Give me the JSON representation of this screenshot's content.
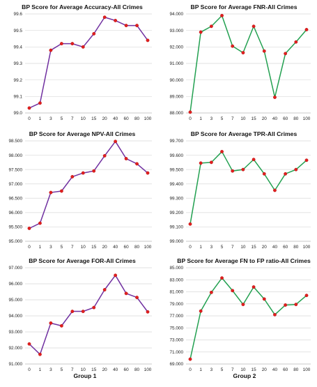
{
  "figure": {
    "group_labels": [
      "Group 1",
      "Group 2"
    ]
  },
  "chart_data": [
    {
      "type": "line",
      "title": "BP Score for Average Accuracy-All Crimes",
      "categories": [
        "0",
        "1",
        "3",
        "5",
        "7",
        "10",
        "15",
        "20",
        "40",
        "60",
        "80",
        "100"
      ],
      "values": [
        99.03,
        99.06,
        99.38,
        99.42,
        99.42,
        99.4,
        99.48,
        99.58,
        99.56,
        99.53,
        99.53,
        99.44
      ],
      "ylim": [
        99.0,
        99.6
      ],
      "yticks": [
        "99.0",
        "99.1",
        "99.2",
        "99.3",
        "99.4",
        "99.5",
        "99.6"
      ],
      "ytick_values": [
        99.0,
        99.1,
        99.2,
        99.3,
        99.4,
        99.5,
        99.6
      ],
      "line_color": "#7030a0",
      "marker_color": "#e02020",
      "grid": true
    },
    {
      "type": "line",
      "title": "BP Score for Average FNR-All Crimes",
      "categories": [
        "0",
        "1",
        "3",
        "5",
        "7",
        "10",
        "15",
        "20",
        "40",
        "60",
        "80",
        "100"
      ],
      "values": [
        88.05,
        92.9,
        93.25,
        93.9,
        92.05,
        91.65,
        93.25,
        91.75,
        88.95,
        91.6,
        92.3,
        93.05
      ],
      "ylim": [
        88.0,
        94.0
      ],
      "yticks": [
        "88.000",
        "89.000",
        "90.000",
        "91.000",
        "92.000",
        "93.000",
        "94.000"
      ],
      "ytick_values": [
        88,
        89,
        90,
        91,
        92,
        93,
        94
      ],
      "line_color": "#22a050",
      "marker_color": "#e02020",
      "grid": true
    },
    {
      "type": "line",
      "title": "BP Score for Average NPV-All Crimes",
      "categories": [
        "0",
        "1",
        "3",
        "5",
        "7",
        "10",
        "15",
        "20",
        "40",
        "60",
        "80",
        "100"
      ],
      "values": [
        95.45,
        95.63,
        96.7,
        96.75,
        97.25,
        97.38,
        97.45,
        97.98,
        98.48,
        97.88,
        97.7,
        97.38
      ],
      "ylim": [
        95.0,
        98.5
      ],
      "yticks": [
        "95.000",
        "95.500",
        "96.000",
        "96.500",
        "97.000",
        "97.500",
        "98.000",
        "98.500"
      ],
      "ytick_values": [
        95.0,
        95.5,
        96.0,
        96.5,
        97.0,
        97.5,
        98.0,
        98.5
      ],
      "line_color": "#7030a0",
      "marker_color": "#e02020",
      "grid": true
    },
    {
      "type": "line",
      "title": "BP Score for Average TPR-All Crimes",
      "categories": [
        "0",
        "1",
        "3",
        "5",
        "7",
        "10",
        "15",
        "20",
        "40",
        "60",
        "80",
        "100"
      ],
      "values": [
        99.12,
        99.545,
        99.55,
        99.625,
        99.49,
        99.5,
        99.57,
        99.47,
        99.355,
        99.47,
        99.5,
        99.565
      ],
      "ylim": [
        99.0,
        99.7
      ],
      "yticks": [
        "99.000",
        "99.100",
        "99.200",
        "99.300",
        "99.400",
        "99.500",
        "99.600",
        "99.700"
      ],
      "ytick_values": [
        99.0,
        99.1,
        99.2,
        99.3,
        99.4,
        99.5,
        99.6,
        99.7
      ],
      "line_color": "#22a050",
      "marker_color": "#e02020",
      "grid": true
    },
    {
      "type": "line",
      "title": "BP Score for Average FOR-All Crimes",
      "categories": [
        "0",
        "1",
        "3",
        "5",
        "7",
        "10",
        "15",
        "20",
        "40",
        "60",
        "80",
        "100"
      ],
      "values": [
        92.25,
        91.6,
        93.55,
        93.38,
        94.28,
        94.28,
        94.52,
        95.63,
        96.53,
        95.4,
        95.15,
        94.25
      ],
      "ylim": [
        91.0,
        97.0
      ],
      "yticks": [
        "91.000",
        "92.000",
        "93.000",
        "94.000",
        "95.000",
        "96.000",
        "97.000"
      ],
      "ytick_values": [
        91,
        92,
        93,
        94,
        95,
        96,
        97
      ],
      "line_color": "#7030a0",
      "marker_color": "#e02020",
      "grid": true
    },
    {
      "type": "line",
      "title": "BP Score for Average FN to FP ratio-All Crimes",
      "categories": [
        "0",
        "1",
        "3",
        "5",
        "7",
        "10",
        "15",
        "20",
        "40",
        "60",
        "80",
        "100"
      ],
      "values": [
        69.8,
        77.8,
        80.9,
        83.3,
        81.2,
        78.9,
        81.8,
        79.8,
        77.2,
        78.8,
        78.9,
        80.4
      ],
      "ylim": [
        69.0,
        85.0
      ],
      "yticks": [
        "69.000",
        "71.000",
        "73.000",
        "75.000",
        "77.000",
        "79.000",
        "81.000",
        "83.000",
        "85.000"
      ],
      "ytick_values": [
        69,
        71,
        73,
        75,
        77,
        79,
        81,
        83,
        85
      ],
      "line_color": "#22a050",
      "marker_color": "#e02020",
      "grid": true
    }
  ]
}
